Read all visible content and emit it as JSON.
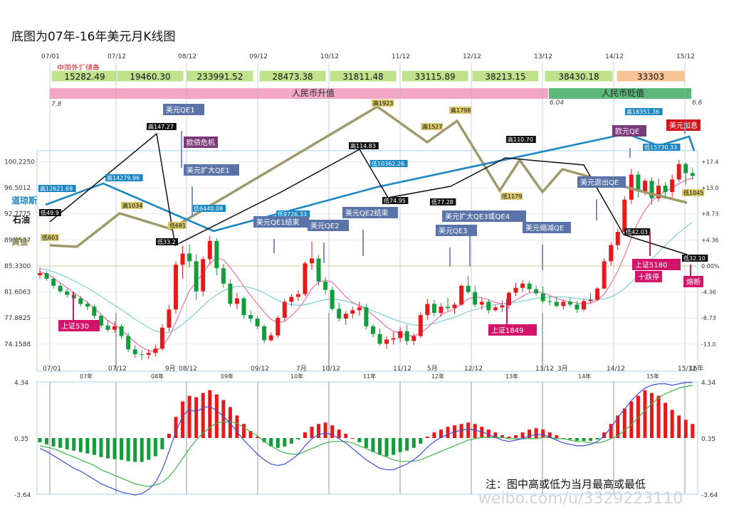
{
  "title": "底图为07年-16年美元月K线图",
  "note": "注：图中高或低为当月最高或最低",
  "watermark": "weibo.com/u/3329223110",
  "top_dates": [
    "07/01",
    "07/12",
    "08/12",
    "09/12",
    "10/12",
    "11/12",
    "12/12",
    "13/12",
    "14/12",
    "15/12"
  ],
  "fx_reserve_label": "中国外汇储备",
  "fx_reserves": [
    "15282.49",
    "19460.30",
    "233991.52",
    "28473.38",
    "31811.48",
    "33115.89",
    "38213.15",
    "38430.18",
    "33303"
  ],
  "rmb_up_label": "人民币升值",
  "rmb_down_label": "人民币贬值",
  "rmb_start_rate": "7.8",
  "rmb_mid_rate": "6.04",
  "rmb_end_rate": "6.6",
  "bottom_dates": [
    "07/01",
    "07/12",
    "9月",
    "08/12",
    "09/12",
    "7月",
    "10/12",
    "11/12",
    "5月",
    "12/12",
    "13/12",
    "3月",
    "14/12",
    "15/12",
    "16年"
  ],
  "year_labels": [
    "07年",
    "08年",
    "09年",
    "10年",
    "11年",
    "12年",
    "13年",
    "14年",
    "15年"
  ],
  "left_axis_labels": [
    "100.2250",
    "96.5012",
    "92.7775",
    "89.0537",
    "85.3300",
    "81.6063",
    "77.8825",
    "74.1588"
  ],
  "right_axis_labels": [
    "+17.4",
    "+13.0",
    "+8.73",
    "+4.36",
    "0.00%",
    "-4.36",
    "-8.73",
    "-13.0"
  ],
  "macd_axis_left": [
    "4.34",
    "0.35",
    "-3.64"
  ],
  "macd_axis_right": [
    "4.34",
    "0.35",
    "-3.64"
  ],
  "series_labels": {
    "gold": "黄金",
    "oil": "石油",
    "dow": "道琼斯"
  },
  "events": [
    "美元QE1",
    "欧债危机",
    "美元扩大QE1",
    "美元QE1结束",
    "美元QE2",
    "美元QE2结束",
    "美元扩大QE3或QE4",
    "美元QE3",
    "美元缩减QE",
    "美元退出QE",
    "欧元QE",
    "美元加息"
  ],
  "market_labels": {
    "sh530": "上证530",
    "sh1849": "上证1849",
    "sh5180": "上证5180",
    "crash": "十跌停",
    "circuit": "熔断"
  },
  "value_tags": [
    "高147.27",
    "低33.2",
    "高1034",
    "低681",
    "低603",
    "低49.9",
    "高12621.69",
    "高14279.96",
    "低6440.08",
    "低9726.33",
    "高114.83",
    "低10362.26",
    "低74.95",
    "高1923",
    "高1527",
    "高1798",
    "低77.28",
    "高110.70",
    "低1179",
    "高18351.36",
    "低15730.33",
    "低42.03",
    "低32.10",
    "低1045"
  ],
  "chart_data": {
    "type": "candlestick",
    "title": "底图为07年-16年美元月K线图",
    "ylim": [
      71.5,
      101.8
    ],
    "ohlc": [
      [
        84.0,
        85.1,
        83.5,
        84.3
      ],
      [
        84.3,
        84.6,
        83.2,
        83.5
      ],
      [
        83.5,
        83.8,
        82.1,
        82.5
      ],
      [
        82.5,
        82.9,
        81.4,
        81.7
      ],
      [
        81.7,
        82.1,
        80.8,
        81.2
      ],
      [
        81.2,
        81.5,
        80.3,
        80.7
      ],
      [
        80.7,
        81.0,
        79.5,
        79.9
      ],
      [
        79.9,
        80.3,
        79.0,
        79.5
      ],
      [
        79.5,
        79.8,
        77.8,
        78.2
      ],
      [
        78.2,
        78.5,
        76.4,
        76.8
      ],
      [
        76.8,
        77.6,
        75.9,
        76.2
      ],
      [
        76.2,
        77.4,
        75.8,
        76.7
      ],
      [
        76.7,
        77.0,
        74.9,
        75.3
      ],
      [
        75.3,
        75.8,
        73.0,
        73.4
      ],
      [
        73.4,
        74.0,
        72.2,
        72.7
      ],
      [
        72.7,
        73.3,
        71.9,
        72.6
      ],
      [
        72.6,
        73.4,
        72.0,
        72.9
      ],
      [
        72.9,
        74.1,
        72.4,
        73.5
      ],
      [
        73.5,
        77.0,
        73.2,
        76.5
      ],
      [
        76.5,
        79.8,
        76.0,
        79.1
      ],
      [
        79.1,
        86.0,
        78.5,
        85.5
      ],
      [
        85.5,
        88.2,
        83.5,
        87.1
      ],
      [
        87.1,
        88.4,
        85.1,
        86.0
      ],
      [
        86.0,
        87.0,
        80.5,
        81.7
      ],
      [
        81.7,
        86.7,
        81.0,
        86.3
      ],
      [
        86.3,
        89.6,
        85.5,
        88.9
      ],
      [
        88.9,
        89.3,
        84.0,
        85.0
      ],
      [
        85.0,
        85.6,
        82.2,
        82.8
      ],
      [
        82.8,
        83.4,
        79.5,
        79.9
      ],
      [
        79.9,
        81.5,
        79.1,
        80.7
      ],
      [
        80.7,
        80.9,
        77.8,
        78.3
      ],
      [
        78.3,
        79.0,
        77.2,
        77.8
      ],
      [
        77.8,
        78.2,
        76.3,
        76.7
      ],
      [
        76.7,
        77.0,
        74.3,
        74.7
      ],
      [
        74.7,
        75.8,
        74.5,
        75.4
      ],
      [
        75.4,
        78.2,
        75.0,
        77.9
      ],
      [
        77.9,
        80.6,
        77.5,
        80.2
      ],
      [
        80.2,
        81.3,
        79.6,
        80.9
      ],
      [
        80.9,
        81.9,
        80.3,
        81.3
      ],
      [
        81.3,
        86.0,
        81.0,
        85.7
      ],
      [
        85.7,
        88.8,
        84.8,
        86.4
      ],
      [
        86.4,
        86.9,
        82.5,
        83.1
      ],
      [
        83.1,
        83.7,
        81.2,
        81.9
      ],
      [
        81.9,
        82.4,
        78.9,
        79.2
      ],
      [
        79.2,
        80.1,
        77.4,
        77.8
      ],
      [
        77.8,
        78.9,
        76.9,
        78.5
      ],
      [
        78.5,
        79.5,
        77.8,
        79.0
      ],
      [
        79.0,
        80.2,
        78.2,
        79.4
      ],
      [
        79.4,
        79.9,
        76.3,
        76.7
      ],
      [
        76.7,
        77.0,
        75.1,
        75.6
      ],
      [
        75.6,
        76.4,
        73.9,
        74.2
      ],
      [
        74.2,
        75.3,
        73.5,
        74.8
      ],
      [
        74.8,
        75.9,
        74.1,
        75.0
      ],
      [
        75.0,
        76.6,
        74.4,
        76.0
      ],
      [
        76.0,
        76.9,
        74.0,
        74.6
      ],
      [
        74.6,
        75.7,
        74.0,
        75.3
      ],
      [
        75.3,
        78.7,
        75.0,
        78.3
      ],
      [
        78.3,
        80.6,
        77.6,
        79.9
      ],
      [
        79.9,
        80.5,
        78.1,
        78.6
      ],
      [
        78.6,
        80.0,
        78.0,
        79.5
      ],
      [
        79.5,
        80.8,
        78.9,
        79.3
      ],
      [
        79.3,
        80.1,
        78.5,
        79.8
      ],
      [
        79.8,
        82.7,
        79.6,
        82.5
      ],
      [
        82.5,
        83.9,
        81.3,
        81.6
      ],
      [
        81.6,
        82.5,
        79.4,
        79.8
      ],
      [
        79.8,
        80.7,
        79.1,
        80.2
      ],
      [
        80.2,
        80.6,
        78.5,
        79.0
      ],
      [
        79.0,
        79.7,
        78.8,
        79.4
      ],
      [
        79.4,
        80.4,
        78.7,
        79.7
      ],
      [
        79.7,
        81.7,
        79.2,
        81.5
      ],
      [
        81.5,
        82.9,
        81.0,
        82.2
      ],
      [
        82.2,
        83.3,
        81.6,
        82.8
      ],
      [
        82.8,
        83.2,
        81.5,
        82.0
      ],
      [
        82.0,
        82.5,
        81.1,
        81.4
      ],
      [
        81.4,
        82.4,
        80.0,
        80.3
      ],
      [
        80.3,
        81.0,
        79.7,
        80.2
      ],
      [
        80.2,
        80.9,
        79.4,
        79.6
      ],
      [
        79.6,
        80.5,
        79.1,
        80.2
      ],
      [
        80.2,
        80.8,
        79.4,
        79.8
      ],
      [
        79.8,
        80.3,
        78.6,
        79.1
      ],
      [
        79.1,
        80.6,
        78.9,
        80.3
      ],
      [
        80.3,
        81.5,
        79.9,
        80.5
      ],
      [
        80.5,
        82.3,
        80.3,
        82.1
      ],
      [
        82.1,
        86.4,
        82.0,
        86.0
      ],
      [
        86.0,
        88.7,
        85.4,
        88.3
      ],
      [
        88.3,
        90.6,
        87.6,
        90.2
      ],
      [
        90.2,
        95.3,
        90.0,
        94.8
      ],
      [
        94.8,
        99.2,
        94.2,
        98.4
      ],
      [
        98.4,
        98.9,
        95.1,
        96.0
      ],
      [
        96.0,
        97.8,
        95.4,
        97.5
      ],
      [
        97.5,
        98.0,
        94.1,
        95.0
      ],
      [
        95.0,
        97.8,
        94.5,
        96.8
      ],
      [
        96.8,
        97.3,
        94.9,
        95.9
      ],
      [
        95.9,
        98.4,
        95.1,
        97.7
      ],
      [
        97.7,
        100.5,
        97.3,
        99.9
      ],
      [
        99.9,
        100.1,
        96.9,
        98.6
      ],
      [
        98.6,
        99.4,
        97.6,
        98.2
      ]
    ],
    "ma_fast": [
      84.5,
      84.2,
      83.6,
      82.9,
      82.2,
      81.5,
      80.8,
      80.1,
      79.3,
      78.4,
      77.5,
      76.9,
      76.2,
      75.3,
      74.4,
      73.7,
      73.2,
      73.1,
      73.8,
      75.2,
      77.3,
      79.6,
      81.8,
      83.0,
      84.3,
      85.7,
      86.5,
      86.2,
      85.1,
      83.8,
      82.4,
      81.1,
      79.9,
      78.7,
      77.7,
      77.2,
      77.4,
      78.2,
      79.2,
      80.5,
      82.1,
      83.0,
      83.3,
      83.0,
      82.0,
      80.9,
      80.1,
      79.6,
      79.1,
      78.3,
      77.5,
      76.6,
      76.0,
      75.7,
      75.4,
      75.3,
      75.7,
      76.5,
      77.4,
      78.3,
      78.8,
      79.2,
      79.9,
      80.6,
      80.9,
      80.8,
      80.5,
      80.1,
      79.9,
      80.0,
      80.4,
      81.0,
      81.5,
      81.7,
      81.5,
      81.1,
      80.7,
      80.4,
      80.2,
      80.0,
      79.9,
      80.0,
      80.4,
      81.3,
      82.8,
      84.6,
      86.8,
      89.3,
      91.6,
      93.3,
      94.6,
      95.4,
      96.0,
      96.5,
      97.1,
      97.6,
      97.9
    ],
    "ma_slow": [
      85.0,
      84.8,
      84.5,
      84.1,
      83.7,
      83.2,
      82.7,
      82.2,
      81.6,
      81.0,
      80.3,
      79.7,
      79.1,
      78.4,
      77.7,
      77.1,
      76.5,
      76.0,
      75.8,
      75.8,
      76.3,
      77.0,
      77.8,
      78.7,
      79.6,
      80.5,
      81.2,
      81.8,
      82.2,
      82.4,
      82.4,
      82.2,
      81.9,
      81.5,
      80.9,
      80.4,
      80.0,
      79.8,
      79.7,
      79.8,
      80.0,
      80.3,
      80.5,
      80.6,
      80.5,
      80.3,
      80.0,
      79.7,
      79.3,
      78.9,
      78.5,
      78.1,
      77.7,
      77.4,
      77.1,
      76.9,
      76.8,
      76.9,
      77.1,
      77.4,
      77.7,
      78.0,
      78.4,
      78.8,
      79.1,
      79.4,
      79.6,
      79.8,
      79.9,
      80.0,
      80.1,
      80.3,
      80.5,
      80.7,
      80.8,
      80.9,
      80.9,
      80.9,
      80.8,
      80.7,
      80.6,
      80.5,
      80.5,
      80.6,
      80.9,
      81.4,
      82.1,
      83.0,
      84.0,
      85.1,
      86.2,
      87.3,
      88.3,
      89.2,
      90.1,
      90.9,
      91.6
    ],
    "macd_ylim": [
      -3.64,
      4.34
    ],
    "macd_hist": [
      -0.3,
      -0.45,
      -0.6,
      -0.7,
      -0.8,
      -0.9,
      -1.0,
      -1.1,
      -1.2,
      -1.35,
      -1.45,
      -1.5,
      -1.55,
      -1.65,
      -1.7,
      -1.7,
      -1.55,
      -1.3,
      -0.8,
      0.3,
      1.5,
      2.6,
      3.0,
      2.9,
      3.2,
      3.4,
      3.1,
      2.7,
      2.2,
      1.6,
      1.0,
      0.5,
      0.1,
      -0.3,
      -0.6,
      -0.7,
      -0.6,
      -0.4,
      -0.1,
      0.4,
      0.8,
      1.0,
      1.1,
      0.9,
      0.6,
      0.3,
      0.0,
      -0.3,
      -0.7,
      -1.0,
      -1.2,
      -1.3,
      -1.2,
      -1.0,
      -0.9,
      -0.7,
      -0.4,
      0.1,
      0.4,
      0.6,
      0.8,
      0.9,
      1.0,
      1.1,
      1.0,
      0.8,
      0.6,
      0.4,
      0.2,
      0.1,
      0.2,
      0.4,
      0.6,
      0.7,
      0.6,
      0.4,
      0.2,
      0.0,
      -0.1,
      -0.2,
      -0.2,
      -0.2,
      -0.1,
      0.4,
      1.0,
      1.6,
      2.1,
      2.6,
      3.0,
      3.4,
      3.2,
      3.0,
      2.5,
      2.0,
      1.6,
      1.3,
      1.0
    ],
    "macd_diff": [
      -0.4,
      -0.6,
      -0.9,
      -1.2,
      -1.5,
      -1.8,
      -2.0,
      -2.3,
      -2.6,
      -2.9,
      -3.1,
      -3.3,
      -3.5,
      -3.6,
      -3.7,
      -3.6,
      -3.3,
      -2.8,
      -1.9,
      -0.6,
      0.8,
      1.9,
      2.4,
      2.2,
      2.5,
      2.6,
      2.3,
      1.9,
      1.4,
      0.8,
      0.2,
      -0.3,
      -0.8,
      -1.2,
      -1.5,
      -1.6,
      -1.5,
      -1.2,
      -0.8,
      -0.2,
      0.3,
      0.6,
      0.7,
      0.6,
      0.3,
      0.0,
      -0.4,
      -0.8,
      -1.2,
      -1.5,
      -1.8,
      -1.9,
      -1.9,
      -1.7,
      -1.5,
      -1.2,
      -0.8,
      -0.3,
      0.1,
      0.4,
      0.6,
      0.8,
      0.9,
      1.0,
      0.9,
      0.8,
      0.6,
      0.4,
      0.2,
      0.1,
      0.2,
      0.3,
      0.5,
      0.6,
      0.6,
      0.4,
      0.2,
      0.0,
      -0.1,
      -0.2,
      -0.2,
      -0.1,
      0.1,
      0.5,
      1.1,
      1.8,
      2.4,
      3.0,
      3.5,
      3.9,
      4.1,
      4.2,
      4.2,
      4.1,
      4.2,
      4.3,
      4.3
    ],
    "macd_dea": [
      -0.2,
      -0.3,
      -0.4,
      -0.6,
      -0.8,
      -1.0,
      -1.2,
      -1.4,
      -1.6,
      -1.9,
      -2.1,
      -2.3,
      -2.5,
      -2.7,
      -2.9,
      -3.0,
      -3.1,
      -3.0,
      -2.8,
      -2.4,
      -1.8,
      -1.1,
      -0.4,
      0.2,
      0.7,
      1.1,
      1.4,
      1.5,
      1.5,
      1.4,
      1.1,
      0.8,
      0.5,
      0.1,
      -0.2,
      -0.5,
      -0.7,
      -0.8,
      -0.8,
      -0.6,
      -0.4,
      -0.2,
      0.0,
      0.1,
      0.1,
      0.1,
      0.0,
      -0.2,
      -0.4,
      -0.6,
      -0.8,
      -1.0,
      -1.2,
      -1.3,
      -1.3,
      -1.3,
      -1.2,
      -1.0,
      -0.8,
      -0.6,
      -0.4,
      -0.2,
      0.0,
      0.2,
      0.3,
      0.4,
      0.4,
      0.4,
      0.4,
      0.3,
      0.3,
      0.3,
      0.3,
      0.3,
      0.4,
      0.4,
      0.3,
      0.3,
      0.2,
      0.1,
      0.1,
      0.0,
      0.0,
      0.1,
      0.3,
      0.5,
      0.9,
      1.3,
      1.8,
      2.3,
      2.8,
      3.2,
      3.5,
      3.7,
      3.9,
      4.0,
      4.1
    ],
    "overlay_lines": {
      "dow_blue": [
        [
          9,
          64,
          288
        ],
        [
          13,
          145,
          258
        ],
        [
          26,
          300,
          325
        ],
        [
          52,
          530,
          263
        ],
        [
          86,
          880,
          188
        ],
        [
          90,
          925,
          205
        ],
        [
          93,
          968,
          192
        ],
        [
          94,
          975,
          212
        ]
      ],
      "oil_black": [
        [
          0,
          70,
          312
        ],
        [
          14,
          220,
          188
        ],
        [
          16,
          246,
          345
        ],
        [
          26,
          395,
          270
        ],
        [
          38,
          505,
          210
        ],
        [
          42,
          545,
          278
        ],
        [
          52,
          633,
          262
        ],
        [
          58,
          710,
          222
        ],
        [
          70,
          820,
          232
        ],
        [
          76,
          876,
          330
        ],
        [
          84,
          965,
          358
        ]
      ],
      "gold_olive": [
        [
          0,
          70,
          345
        ],
        [
          5,
          108,
          347
        ],
        [
          11,
          168,
          300
        ],
        [
          17,
          240,
          322
        ],
        [
          42,
          530,
          150
        ],
        [
          52,
          600,
          200
        ],
        [
          58,
          642,
          170
        ],
        [
          63,
          702,
          268
        ],
        [
          67,
          730,
          225
        ],
        [
          71,
          762,
          270
        ],
        [
          76,
          790,
          238
        ],
        [
          86,
          897,
          268
        ],
        [
          90,
          965,
          285
        ]
      ]
    },
    "grid": true
  }
}
